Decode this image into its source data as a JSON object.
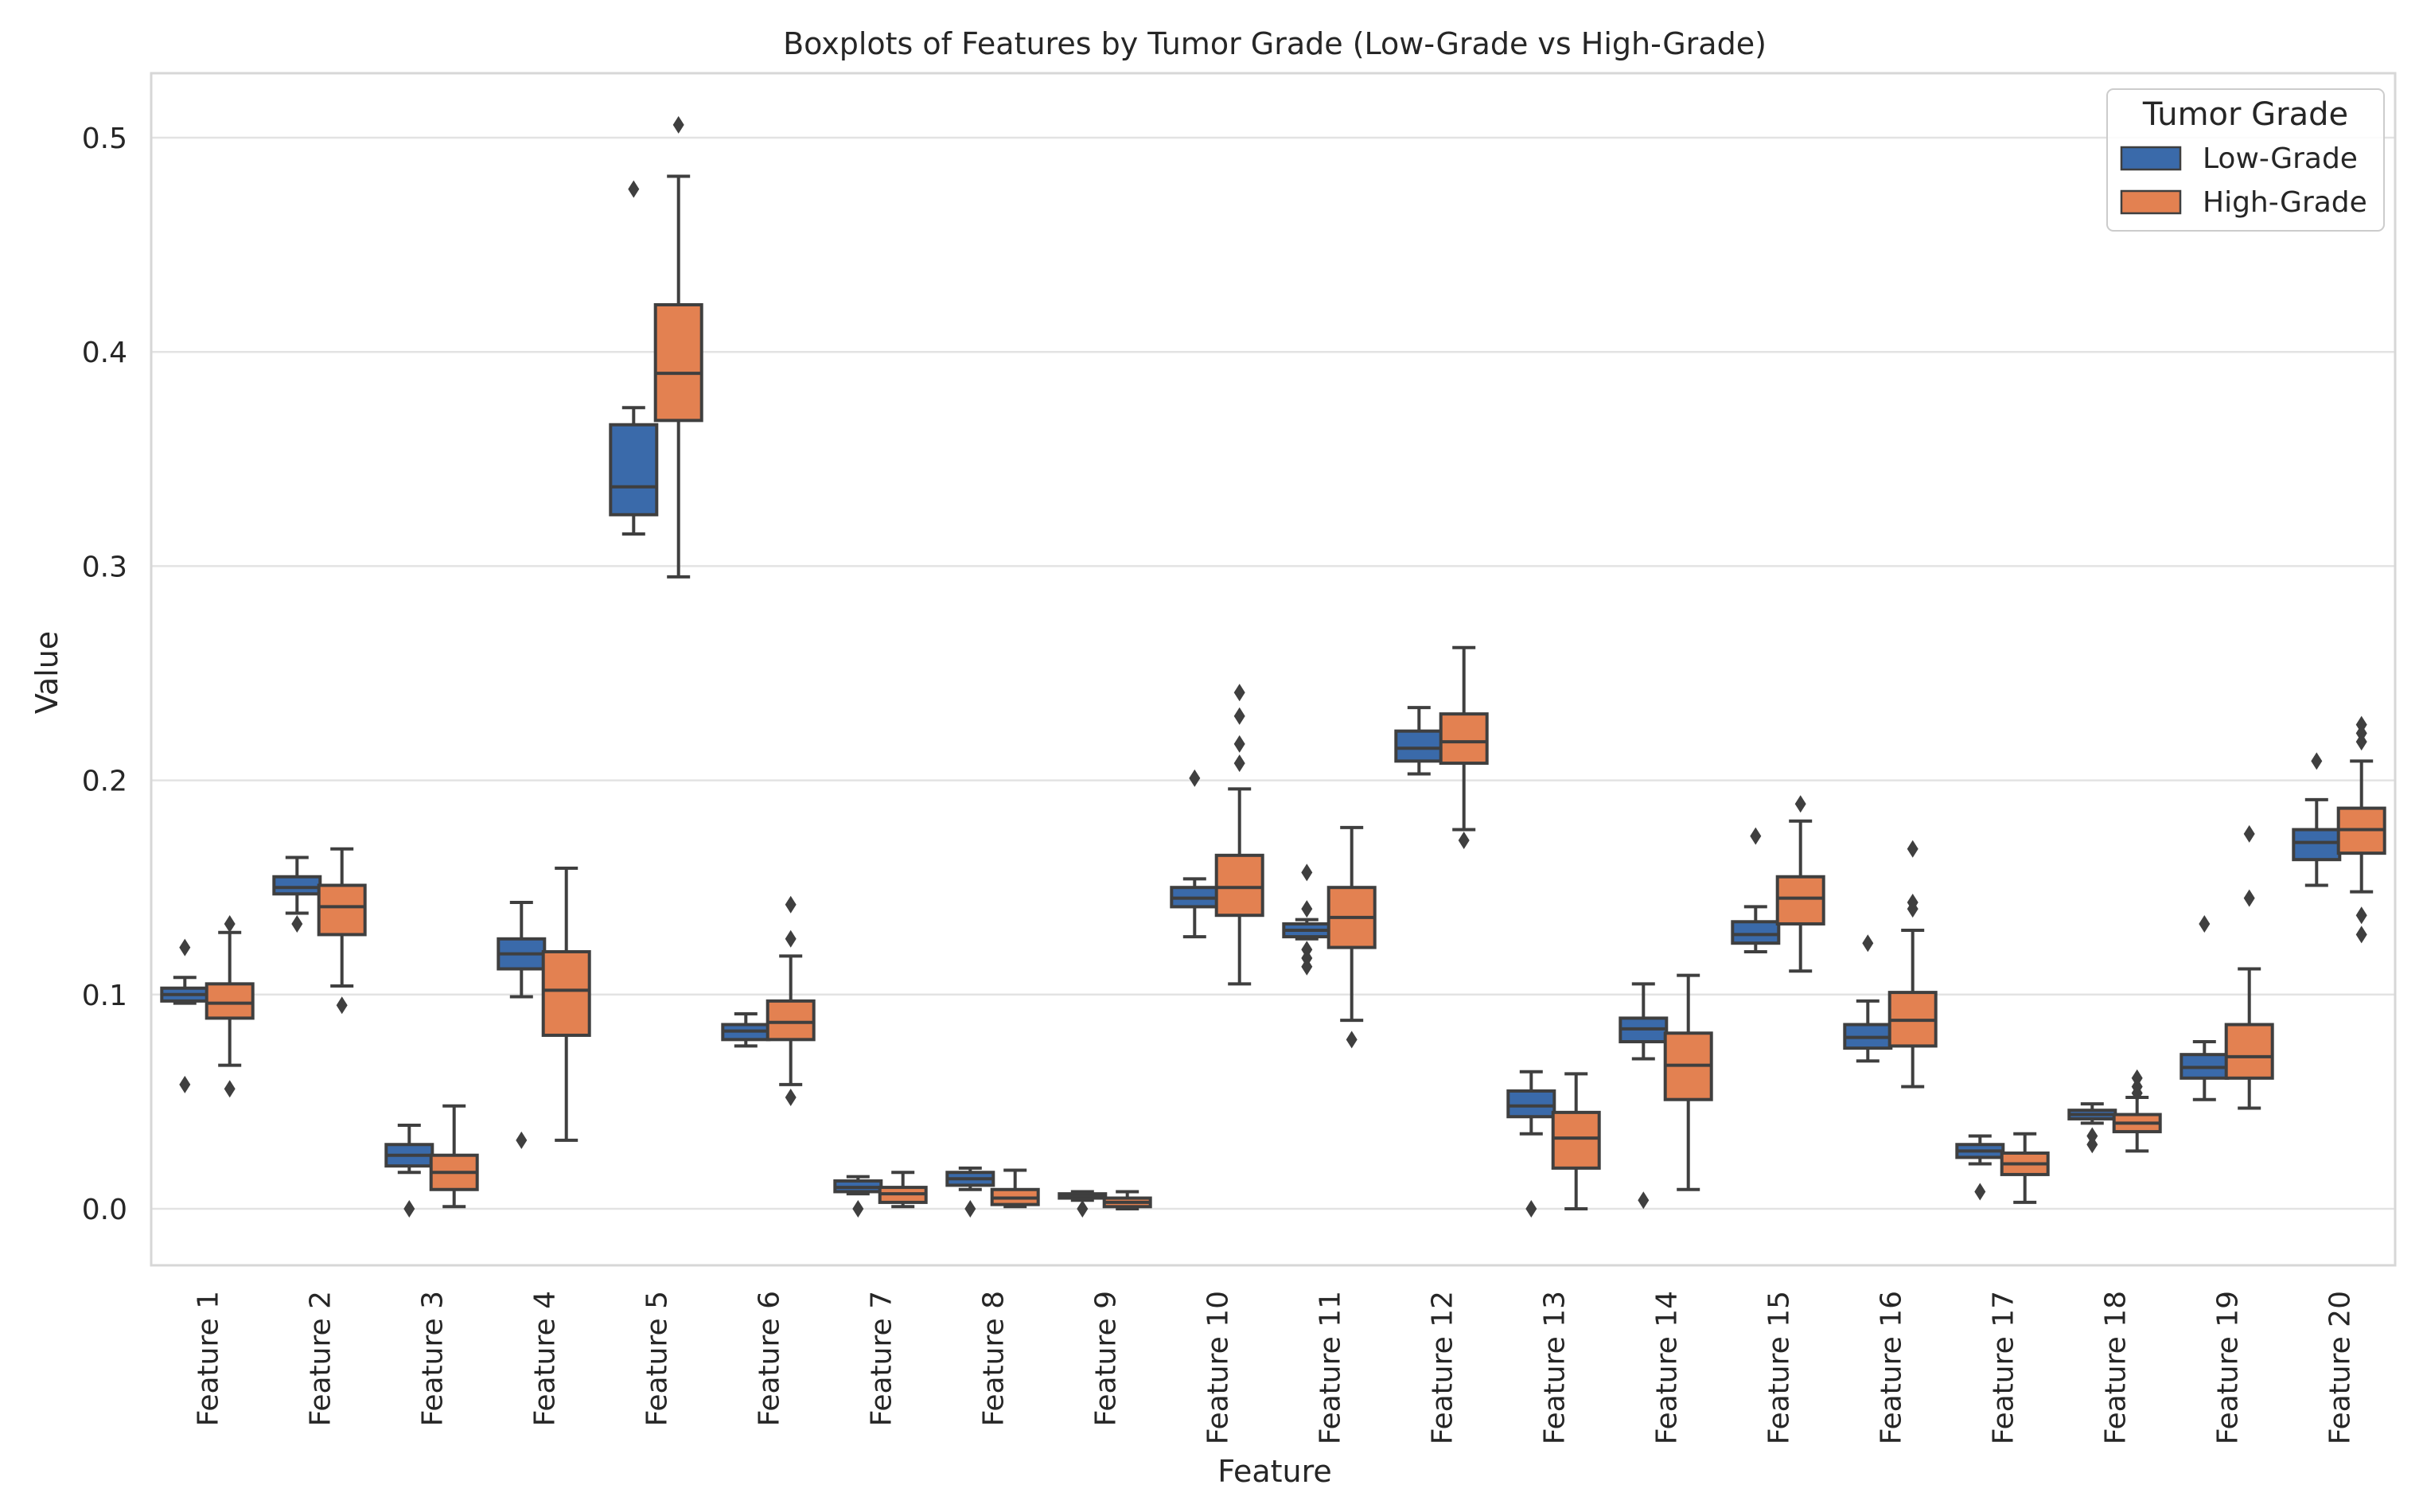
{
  "chart_data": {
    "type": "boxplot",
    "title": "Boxplots of Features by Tumor Grade (Low-Grade vs High-Grade)",
    "xlabel": "Feature",
    "ylabel": "Value",
    "ylim": [
      -0.025,
      0.53
    ],
    "yticks": [
      "0.0",
      "0.1",
      "0.2",
      "0.3",
      "0.4",
      "0.5"
    ],
    "grid": true,
    "legend": {
      "title": "Tumor Grade",
      "position": "top-right"
    },
    "categories": [
      "Feature 1",
      "Feature 2",
      "Feature 3",
      "Feature 4",
      "Feature 5",
      "Feature 6",
      "Feature 7",
      "Feature 8",
      "Feature 9",
      "Feature 10",
      "Feature 11",
      "Feature 12",
      "Feature 13",
      "Feature 14",
      "Feature 15",
      "Feature 16",
      "Feature 17",
      "Feature 18",
      "Feature 19",
      "Feature 20"
    ],
    "series": [
      {
        "name": "Low-Grade",
        "color": "#3a6aaa",
        "boxes": [
          {
            "whislo": 0.096,
            "q1": 0.097,
            "med": 0.1,
            "q3": 0.103,
            "whishi": 0.108,
            "fliers": [
              0.122,
              0.058
            ]
          },
          {
            "whislo": 0.138,
            "q1": 0.147,
            "med": 0.15,
            "q3": 0.155,
            "whishi": 0.164,
            "fliers": [
              0.133
            ]
          },
          {
            "whislo": 0.017,
            "q1": 0.02,
            "med": 0.025,
            "q3": 0.03,
            "whishi": 0.039,
            "fliers": [
              0.0
            ]
          },
          {
            "whislo": 0.099,
            "q1": 0.112,
            "med": 0.119,
            "q3": 0.126,
            "whishi": 0.143,
            "fliers": [
              0.032
            ]
          },
          {
            "whislo": 0.315,
            "q1": 0.324,
            "med": 0.337,
            "q3": 0.366,
            "whishi": 0.374,
            "fliers": [
              0.476
            ]
          },
          {
            "whislo": 0.076,
            "q1": 0.079,
            "med": 0.083,
            "q3": 0.086,
            "whishi": 0.091,
            "fliers": []
          },
          {
            "whislo": 0.007,
            "q1": 0.008,
            "med": 0.01,
            "q3": 0.013,
            "whishi": 0.015,
            "fliers": [
              0.0
            ]
          },
          {
            "whislo": 0.009,
            "q1": 0.011,
            "med": 0.014,
            "q3": 0.017,
            "whishi": 0.019,
            "fliers": [
              0.0
            ]
          },
          {
            "whislo": 0.004,
            "q1": 0.005,
            "med": 0.006,
            "q3": 0.007,
            "whishi": 0.008,
            "fliers": [
              0.0
            ]
          },
          {
            "whislo": 0.127,
            "q1": 0.141,
            "med": 0.145,
            "q3": 0.15,
            "whishi": 0.154,
            "fliers": [
              0.201
            ]
          },
          {
            "whislo": 0.126,
            "q1": 0.127,
            "med": 0.13,
            "q3": 0.133,
            "whishi": 0.135,
            "fliers": [
              0.157,
              0.14,
              0.121,
              0.117,
              0.113
            ]
          },
          {
            "whislo": 0.203,
            "q1": 0.209,
            "med": 0.215,
            "q3": 0.223,
            "whishi": 0.234,
            "fliers": []
          },
          {
            "whislo": 0.035,
            "q1": 0.043,
            "med": 0.048,
            "q3": 0.055,
            "whishi": 0.064,
            "fliers": [
              0.0
            ]
          },
          {
            "whislo": 0.07,
            "q1": 0.078,
            "med": 0.084,
            "q3": 0.089,
            "whishi": 0.105,
            "fliers": [
              0.004
            ]
          },
          {
            "whislo": 0.12,
            "q1": 0.124,
            "med": 0.128,
            "q3": 0.134,
            "whishi": 0.141,
            "fliers": [
              0.174
            ]
          },
          {
            "whislo": 0.069,
            "q1": 0.075,
            "med": 0.08,
            "q3": 0.086,
            "whishi": 0.097,
            "fliers": [
              0.124
            ]
          },
          {
            "whislo": 0.021,
            "q1": 0.024,
            "med": 0.027,
            "q3": 0.03,
            "whishi": 0.034,
            "fliers": [
              0.008
            ]
          },
          {
            "whislo": 0.04,
            "q1": 0.042,
            "med": 0.044,
            "q3": 0.046,
            "whishi": 0.049,
            "fliers": [
              0.034,
              0.03
            ]
          },
          {
            "whislo": 0.051,
            "q1": 0.061,
            "med": 0.066,
            "q3": 0.072,
            "whishi": 0.078,
            "fliers": [
              0.133
            ]
          },
          {
            "whislo": 0.151,
            "q1": 0.163,
            "med": 0.171,
            "q3": 0.177,
            "whishi": 0.191,
            "fliers": [
              0.209
            ]
          }
        ]
      },
      {
        "name": "High-Grade",
        "color": "#e38151",
        "boxes": [
          {
            "whislo": 0.067,
            "q1": 0.089,
            "med": 0.096,
            "q3": 0.105,
            "whishi": 0.129,
            "fliers": [
              0.133,
              0.056
            ]
          },
          {
            "whislo": 0.104,
            "q1": 0.128,
            "med": 0.141,
            "q3": 0.151,
            "whishi": 0.168,
            "fliers": [
              0.095
            ]
          },
          {
            "whislo": 0.001,
            "q1": 0.009,
            "med": 0.017,
            "q3": 0.025,
            "whishi": 0.048,
            "fliers": []
          },
          {
            "whislo": 0.032,
            "q1": 0.081,
            "med": 0.102,
            "q3": 0.12,
            "whishi": 0.159,
            "fliers": []
          },
          {
            "whislo": 0.295,
            "q1": 0.368,
            "med": 0.39,
            "q3": 0.422,
            "whishi": 0.482,
            "fliers": [
              0.506
            ]
          },
          {
            "whislo": 0.058,
            "q1": 0.079,
            "med": 0.087,
            "q3": 0.097,
            "whishi": 0.118,
            "fliers": [
              0.142,
              0.126,
              0.052
            ]
          },
          {
            "whislo": 0.001,
            "q1": 0.003,
            "med": 0.007,
            "q3": 0.01,
            "whishi": 0.017,
            "fliers": []
          },
          {
            "whislo": 0.001,
            "q1": 0.002,
            "med": 0.005,
            "q3": 0.009,
            "whishi": 0.018,
            "fliers": []
          },
          {
            "whislo": 0.0,
            "q1": 0.001,
            "med": 0.003,
            "q3": 0.005,
            "whishi": 0.008,
            "fliers": []
          },
          {
            "whislo": 0.105,
            "q1": 0.137,
            "med": 0.15,
            "q3": 0.165,
            "whishi": 0.196,
            "fliers": [
              0.241,
              0.23,
              0.217,
              0.208
            ]
          },
          {
            "whislo": 0.088,
            "q1": 0.122,
            "med": 0.136,
            "q3": 0.15,
            "whishi": 0.178,
            "fliers": [
              0.079
            ]
          },
          {
            "whislo": 0.177,
            "q1": 0.208,
            "med": 0.218,
            "q3": 0.231,
            "whishi": 0.262,
            "fliers": [
              0.172
            ]
          },
          {
            "whislo": 0.0,
            "q1": 0.019,
            "med": 0.033,
            "q3": 0.045,
            "whishi": 0.063,
            "fliers": []
          },
          {
            "whislo": 0.009,
            "q1": 0.051,
            "med": 0.067,
            "q3": 0.082,
            "whishi": 0.109,
            "fliers": []
          },
          {
            "whislo": 0.111,
            "q1": 0.133,
            "med": 0.145,
            "q3": 0.155,
            "whishi": 0.181,
            "fliers": [
              0.189
            ]
          },
          {
            "whislo": 0.057,
            "q1": 0.076,
            "med": 0.088,
            "q3": 0.101,
            "whishi": 0.13,
            "fliers": [
              0.168,
              0.143,
              0.14
            ]
          },
          {
            "whislo": 0.003,
            "q1": 0.016,
            "med": 0.021,
            "q3": 0.026,
            "whishi": 0.035,
            "fliers": []
          },
          {
            "whislo": 0.027,
            "q1": 0.036,
            "med": 0.04,
            "q3": 0.044,
            "whishi": 0.052,
            "fliers": [
              0.061,
              0.057,
              0.054
            ]
          },
          {
            "whislo": 0.047,
            "q1": 0.061,
            "med": 0.071,
            "q3": 0.086,
            "whishi": 0.112,
            "fliers": [
              0.175,
              0.145
            ]
          },
          {
            "whislo": 0.148,
            "q1": 0.166,
            "med": 0.177,
            "q3": 0.187,
            "whishi": 0.209,
            "fliers": [
              0.226,
              0.222,
              0.218,
              0.137,
              0.128
            ]
          }
        ]
      }
    ]
  }
}
